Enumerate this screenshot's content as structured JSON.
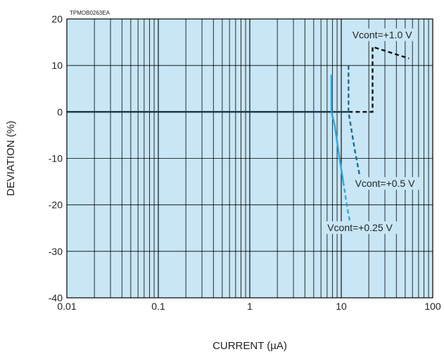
{
  "chart_data": {
    "type": "line",
    "figure_code": "TPMOB0263EA",
    "xlabel": "CURRENT (µA)",
    "ylabel": "DEVIATION (%)",
    "xscale": "log",
    "xlim": [
      0.01,
      100
    ],
    "ylim": [
      -40,
      20
    ],
    "grid": true,
    "x_tick_labels": [
      "0.01",
      "0.1",
      "1",
      "10",
      "100"
    ],
    "y_tick_labels": [
      "20",
      "10",
      "0",
      "-10",
      "-20",
      "-30",
      "-40"
    ],
    "colors": {
      "plot_background": "#c8e6f5",
      "grid": "#000000",
      "zero_line": "#1a3a4a",
      "series_1v": "#111111",
      "series_05v": "#1a6e95",
      "series_025v": "#29a9e0"
    },
    "series": [
      {
        "name": "Vcont=+1.0 V",
        "color_key": "series_1v",
        "solid": [
          [
            0.01,
            0
          ],
          [
            12,
            0
          ]
        ],
        "dashed": [
          [
            12,
            0
          ],
          [
            22,
            0
          ],
          [
            22,
            14
          ],
          [
            55,
            11.5
          ]
        ]
      },
      {
        "name": "Vcont=+0.5 V",
        "color_key": "series_05v",
        "solid": [
          [
            0.01,
            0
          ],
          [
            8,
            0
          ]
        ],
        "dashed": [
          [
            12,
            10
          ],
          [
            12,
            2
          ],
          [
            12,
            0
          ],
          [
            14,
            -8
          ],
          [
            16,
            -14
          ]
        ]
      },
      {
        "name": "Vcont=+0.25 V",
        "color_key": "series_025v",
        "solid": [
          [
            7.8,
            8
          ],
          [
            7.8,
            0
          ],
          [
            8.5,
            -3
          ],
          [
            9.5,
            -9.5
          ],
          [
            10.5,
            -15
          ]
        ],
        "dashed": [
          [
            10.5,
            -15
          ],
          [
            11.5,
            -20
          ],
          [
            12.5,
            -24
          ]
        ]
      }
    ],
    "annotations": [
      {
        "text": "Vcont=+1.0 V",
        "x": 28,
        "y": 16
      },
      {
        "text": "Vcont=+0.5 V",
        "x": 30,
        "y": -16
      },
      {
        "text": "Vcont=+0.25 V",
        "x": 16,
        "y": -25.5
      }
    ]
  }
}
